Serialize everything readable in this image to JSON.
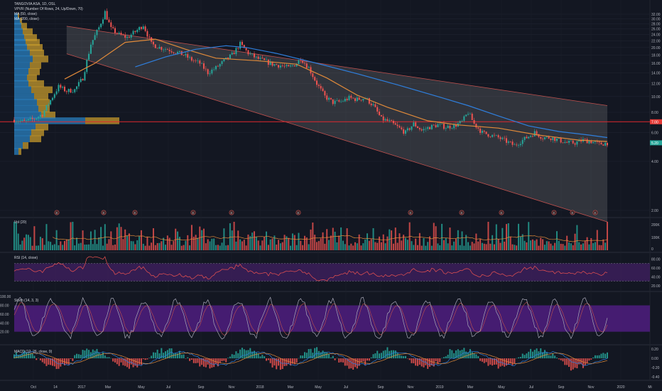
{
  "header": {
    "title": "TANGOVIA ASA, 1D, OSL",
    "vpvr": "VPVR (Number Of Rows, 24, Up/Down, 70)",
    "ma50": "MA (50, close)",
    "ma200": "MA (200, close)",
    "vol": "Vol (20)",
    "rsi": "RSI (14, close)",
    "stoch": "Stoch (14, 3, 3)",
    "macd": "MACD (12, 26, close, 9)"
  },
  "colors": {
    "background": "#131722",
    "up": "#26a69a",
    "down": "#ef5350",
    "ma50": "#e08a3a",
    "ma200": "#2f7fdd",
    "channel_fill": "#808080",
    "channel_edge": "#c0504d",
    "hline": "#e0282e",
    "rsi_band": "#3c1f5a",
    "stoch_band": "#4b1d7a",
    "vpvr_up": "#2a80c0",
    "vpvr_down": "#c59a2c",
    "price_tag_red": "#e53935",
    "price_tag_teal": "#26a69a"
  },
  "chart_data": {
    "type": "candlestick",
    "title": "TANGOVIA ASA, 1D, OSL",
    "price_axis": {
      "scale": "log",
      "ticks": [
        "32.00",
        "30.00",
        "28.00",
        "26.00",
        "24.00",
        "22.00",
        "20.00",
        "18.00",
        "16.00",
        "14.00",
        "12.00",
        "10.00",
        "8.00",
        "6.00",
        "4.00",
        "2.00"
      ]
    },
    "price_tags": {
      "resistance": "7.00",
      "last": "5.20"
    },
    "resistance_level": 7.0,
    "x_ticks": [
      "Oct",
      "14",
      "2017",
      "Mar",
      "May",
      "Jul",
      "Sep",
      "Nov",
      "2018",
      "Mar",
      "May",
      "Jul",
      "Sep",
      "Nov",
      "2019",
      "Mar",
      "May",
      "Jul",
      "Sep",
      "Nov",
      "2020",
      "Mi"
    ],
    "price_path": [
      [
        0,
        7.2
      ],
      [
        5,
        7.0
      ],
      [
        10,
        7.3
      ],
      [
        14,
        7.8
      ],
      [
        18,
        9.5
      ],
      [
        22,
        11.5
      ],
      [
        26,
        10.8
      ],
      [
        30,
        11.0
      ],
      [
        34,
        13.0
      ],
      [
        38,
        21.0
      ],
      [
        42,
        26.5
      ],
      [
        45,
        33.0
      ],
      [
        48,
        26.0
      ],
      [
        52,
        24.0
      ],
      [
        56,
        23.0
      ],
      [
        60,
        25.0
      ],
      [
        64,
        27.5
      ],
      [
        68,
        21.0
      ],
      [
        72,
        20.0
      ],
      [
        76,
        19.5
      ],
      [
        80,
        18.8
      ],
      [
        84,
        18.0
      ],
      [
        88,
        16.8
      ],
      [
        92,
        16.0
      ],
      [
        96,
        14.0
      ],
      [
        100,
        15.0
      ],
      [
        104,
        16.5
      ],
      [
        108,
        18.0
      ],
      [
        112,
        21.0
      ],
      [
        116,
        18.5
      ],
      [
        120,
        17.2
      ],
      [
        124,
        16.5
      ],
      [
        128,
        15.8
      ],
      [
        132,
        15.5
      ],
      [
        136,
        15.0
      ],
      [
        140,
        16.0
      ],
      [
        142,
        17.2
      ],
      [
        146,
        15.0
      ],
      [
        150,
        12.0
      ],
      [
        154,
        10.0
      ],
      [
        158,
        9.2
      ],
      [
        162,
        9.3
      ],
      [
        166,
        9.8
      ],
      [
        170,
        9.6
      ],
      [
        174,
        9.8
      ],
      [
        178,
        8.8
      ],
      [
        182,
        7.3
      ],
      [
        186,
        7.0
      ],
      [
        190,
        6.5
      ],
      [
        194,
        6.0
      ],
      [
        198,
        6.8
      ],
      [
        202,
        6.2
      ],
      [
        206,
        6.5
      ],
      [
        210,
        6.7
      ],
      [
        214,
        6.5
      ],
      [
        218,
        6.6
      ],
      [
        222,
        7.0
      ],
      [
        225,
        8.0
      ],
      [
        228,
        6.8
      ],
      [
        232,
        6.0
      ],
      [
        236,
        5.8
      ],
      [
        240,
        5.6
      ],
      [
        244,
        5.3
      ],
      [
        248,
        5.0
      ],
      [
        250,
        5.2
      ],
      [
        254,
        5.6
      ],
      [
        258,
        6.0
      ],
      [
        262,
        5.6
      ],
      [
        266,
        5.6
      ],
      [
        270,
        5.4
      ],
      [
        274,
        5.2
      ],
      [
        278,
        5.2
      ],
      [
        282,
        5.4
      ],
      [
        286,
        5.3
      ],
      [
        290,
        5.1
      ],
      [
        294,
        5.2
      ]
    ],
    "ma50_path": [
      [
        25,
        12.8
      ],
      [
        40,
        16.0
      ],
      [
        55,
        21.5
      ],
      [
        70,
        22.5
      ],
      [
        85,
        19.5
      ],
      [
        100,
        17.2
      ],
      [
        120,
        16.6
      ],
      [
        140,
        15.8
      ],
      [
        155,
        13.0
      ],
      [
        170,
        10.2
      ],
      [
        185,
        8.6
      ],
      [
        205,
        7.1
      ],
      [
        220,
        6.7
      ],
      [
        240,
        6.4
      ],
      [
        260,
        5.8
      ],
      [
        280,
        5.4
      ],
      [
        294,
        5.3
      ]
    ],
    "ma200_path": [
      [
        60,
        15.2
      ],
      [
        75,
        17.5
      ],
      [
        90,
        19.5
      ],
      [
        105,
        20.5
      ],
      [
        115,
        20.0
      ],
      [
        130,
        18.4
      ],
      [
        150,
        16.0
      ],
      [
        170,
        13.8
      ],
      [
        190,
        11.8
      ],
      [
        210,
        10.0
      ],
      [
        225,
        8.8
      ],
      [
        240,
        7.6
      ],
      [
        255,
        6.6
      ],
      [
        270,
        6.1
      ],
      [
        285,
        5.8
      ],
      [
        294,
        5.6
      ]
    ],
    "channel": {
      "upper": [
        [
          26,
          27.0
        ],
        [
          294,
          8.8
        ]
      ],
      "lower": [
        [
          26,
          18.3
        ],
        [
          294,
          1.7
        ]
      ]
    },
    "volume_axis": [
      "200K",
      "100K",
      "0"
    ],
    "rsi": {
      "ticks": [
        "80.00",
        "60.00",
        "40.00",
        "20.00"
      ],
      "band": [
        30,
        70
      ]
    },
    "stoch": {
      "ticks": [
        "100.00",
        "80.00",
        "60.00",
        "40.00",
        "20.00"
      ],
      "band": [
        20,
        80
      ]
    },
    "macd": {
      "ticks": [
        "0.20",
        "0.00",
        "-0.20",
        "-0.40"
      ]
    },
    "events_upper": [
      "E",
      "E",
      "E",
      "E",
      "E",
      "E",
      "E",
      "E",
      "E",
      "E"
    ],
    "events_lower": [
      "E",
      "E"
    ]
  }
}
